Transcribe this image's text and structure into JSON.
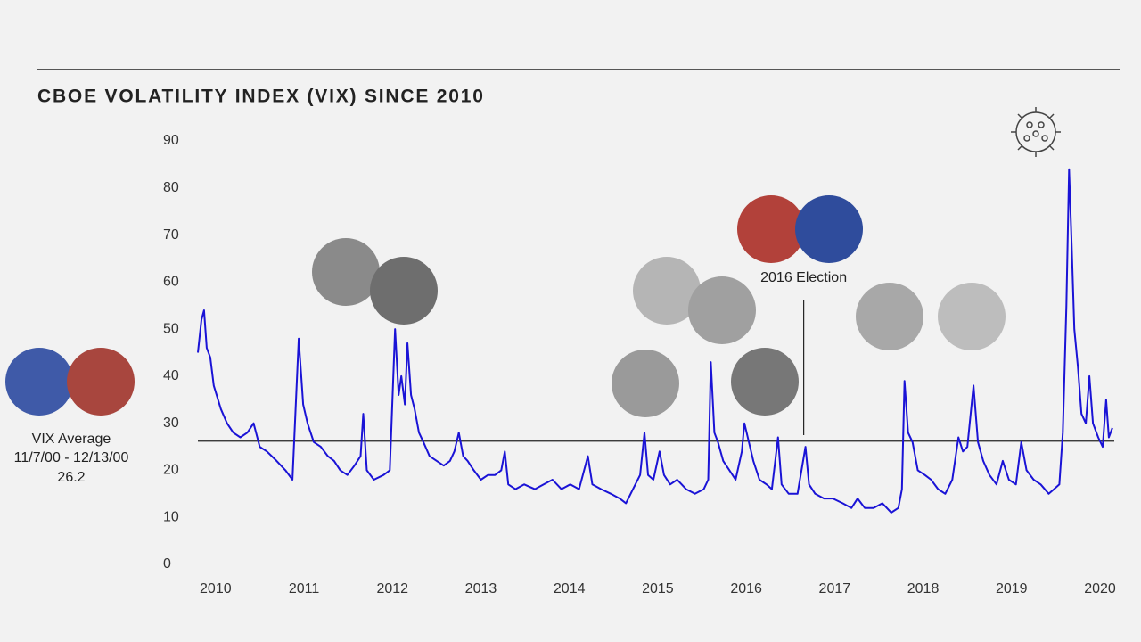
{
  "chart_data": {
    "type": "line",
    "title": "CBOE VOLATILITY INDEX (VIX) SINCE 2010",
    "x": [
      2009.8,
      2009.84,
      2009.87,
      2009.9,
      2009.94,
      2009.98,
      2010.06,
      2010.13,
      2010.2,
      2010.28,
      2010.36,
      2010.43,
      2010.5,
      2010.58,
      2010.69,
      2010.79,
      2010.87,
      2010.94,
      2010.99,
      2011.04,
      2011.11,
      2011.19,
      2011.27,
      2011.34,
      2011.41,
      2011.49,
      2011.57,
      2011.64,
      2011.67,
      2011.71,
      2011.79,
      2011.9,
      2011.97,
      2012.03,
      2012.07,
      2012.1,
      2012.14,
      2012.17,
      2012.21,
      2012.25,
      2012.3,
      2012.35,
      2012.42,
      2012.5,
      2012.58,
      2012.65,
      2012.7,
      2012.75,
      2012.8,
      2012.85,
      2012.92,
      2013.0,
      2013.08,
      2013.16,
      2013.23,
      2013.27,
      2013.31,
      2013.39,
      2013.49,
      2013.61,
      2013.71,
      2013.81,
      2013.91,
      2014.01,
      2014.11,
      2014.21,
      2014.26,
      2014.36,
      2014.47,
      2014.57,
      2014.64,
      2014.72,
      2014.8,
      2014.85,
      2014.89,
      2014.95,
      2015.02,
      2015.07,
      2015.14,
      2015.22,
      2015.32,
      2015.42,
      2015.52,
      2015.57,
      2015.6,
      2015.64,
      2015.68,
      2015.74,
      2015.81,
      2015.88,
      2015.95,
      2015.98,
      2016.03,
      2016.08,
      2016.15,
      2016.23,
      2016.29,
      2016.36,
      2016.4,
      2016.48,
      2016.58,
      2016.67,
      2016.71,
      2016.78,
      2016.88,
      2016.98,
      2017.09,
      2017.19,
      2017.26,
      2017.34,
      2017.44,
      2017.54,
      2017.64,
      2017.72,
      2017.76,
      2017.79,
      2017.83,
      2017.88,
      2017.94,
      2018.02,
      2018.09,
      2018.17,
      2018.25,
      2018.33,
      2018.4,
      2018.45,
      2018.5,
      2018.57,
      2018.62,
      2018.68,
      2018.75,
      2018.83,
      2018.9,
      2018.97,
      2019.05,
      2019.11,
      2019.17,
      2019.25,
      2019.33,
      2019.42,
      2019.48,
      2019.54,
      2019.58,
      2019.62,
      2019.65,
      2019.68,
      2019.71,
      2019.75,
      2019.79,
      2019.84,
      2019.88,
      2019.92,
      2019.98,
      2020.03,
      2020.07,
      2020.1,
      2020.14
    ],
    "series": [
      {
        "name": "VIX",
        "color": "#1a13d6",
        "values": [
          45,
          52,
          54,
          46,
          44,
          38,
          33,
          30,
          28,
          27,
          28,
          30,
          25,
          24,
          22,
          20,
          18,
          48,
          34,
          30,
          26,
          25,
          23,
          22,
          20,
          19,
          21,
          23,
          32,
          20,
          18,
          19,
          20,
          50,
          36,
          40,
          34,
          47,
          36,
          33,
          28,
          26,
          23,
          22,
          21,
          22,
          24,
          28,
          23,
          22,
          20,
          18,
          19,
          19,
          20,
          24,
          17,
          16,
          17,
          16,
          17,
          18,
          16,
          17,
          16,
          23,
          17,
          16,
          15,
          14,
          13,
          16,
          19,
          28,
          19,
          18,
          24,
          19,
          17,
          18,
          16,
          15,
          16,
          18,
          43,
          28,
          26,
          22,
          20,
          18,
          24,
          30,
          26,
          22,
          18,
          17,
          16,
          27,
          17,
          15,
          15,
          25,
          17,
          15,
          14,
          14,
          13,
          12,
          14,
          12,
          12,
          13,
          11,
          12,
          16,
          39,
          28,
          26,
          20,
          19,
          18,
          16,
          15,
          18,
          27,
          24,
          25,
          38,
          26,
          22,
          19,
          17,
          22,
          18,
          17,
          26,
          20,
          18,
          17,
          15,
          16,
          17,
          28,
          55,
          84,
          68,
          50,
          42,
          32,
          30,
          40,
          30,
          27,
          25,
          35,
          27,
          29
        ]
      }
    ],
    "xlim": [
      2009.78,
      2020.25
    ],
    "xticks": [
      2010,
      2011,
      2012,
      2013,
      2014,
      2015,
      2016,
      2017,
      2018,
      2019,
      2020
    ],
    "ylim": [
      0,
      90
    ],
    "yticks": [
      0,
      10,
      20,
      30,
      40,
      50,
      60,
      70,
      80,
      90
    ],
    "reference_line": {
      "value": 26.2,
      "label_lines": [
        "VIX Average",
        "11/7/00 - 12/13/00"
      ]
    },
    "annotation": {
      "text": "2016 Election",
      "x": 2016.65
    }
  }
}
